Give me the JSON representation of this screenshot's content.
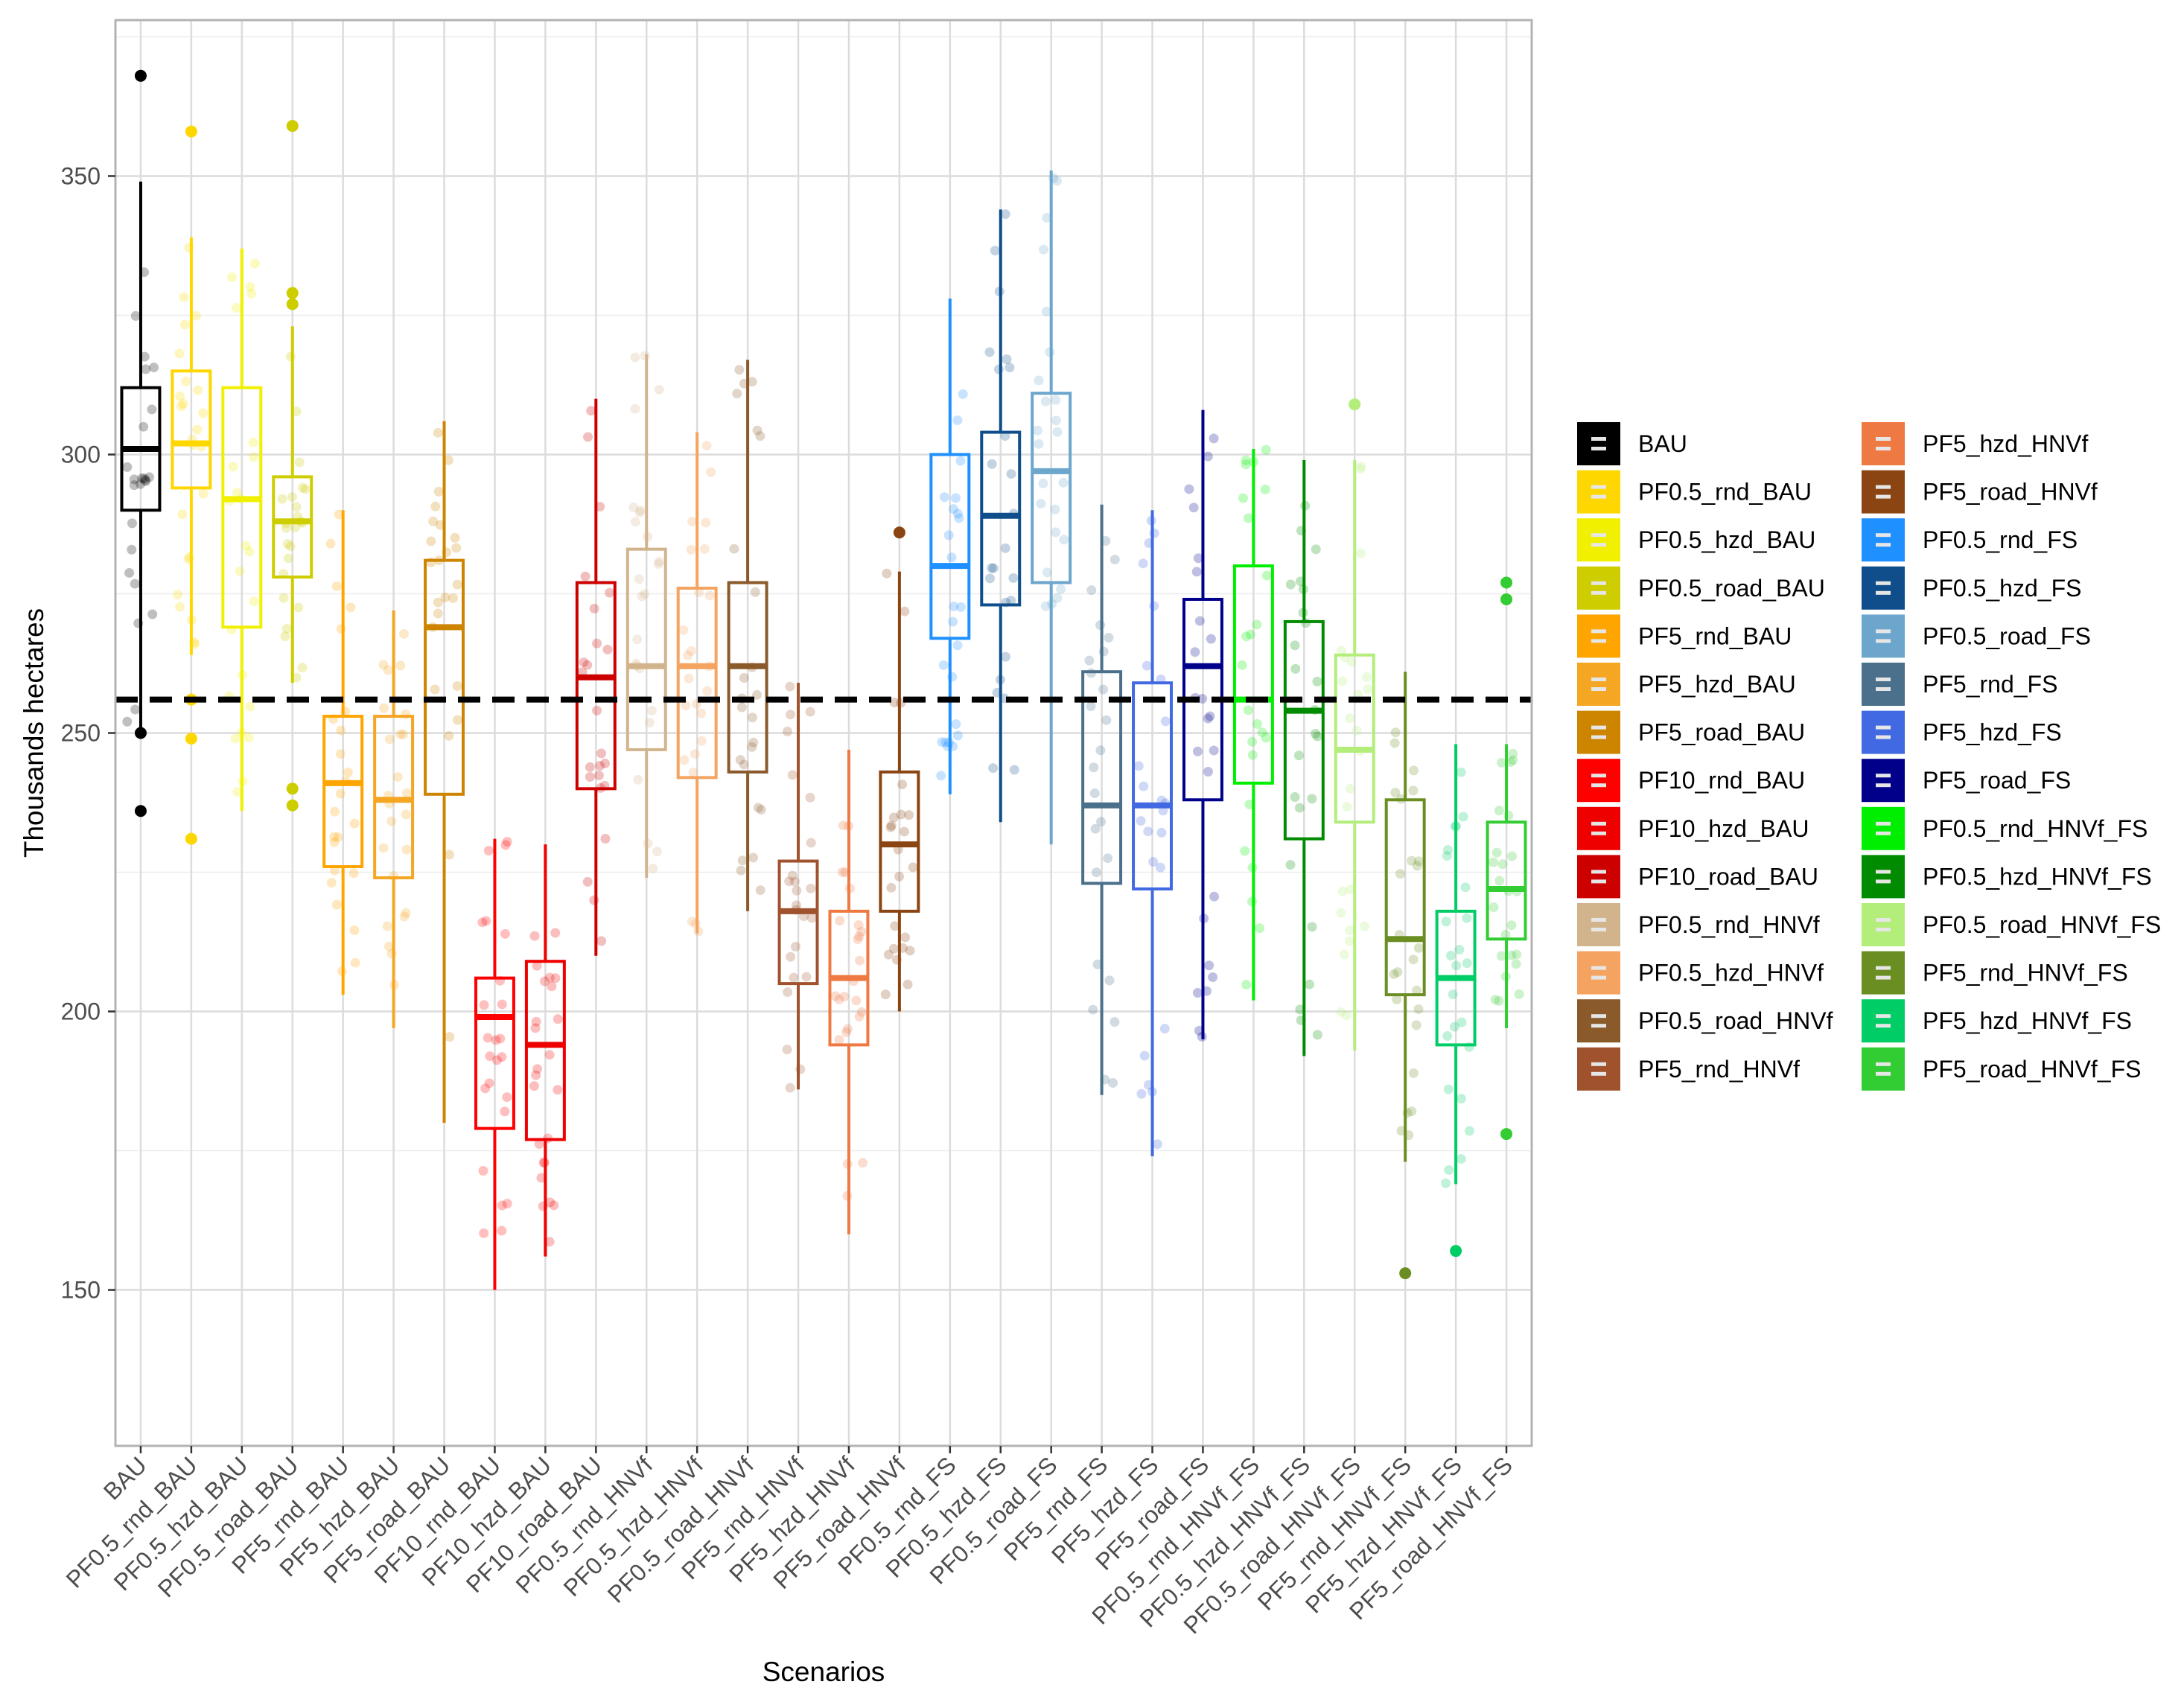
{
  "chart_data": {
    "type": "boxplot",
    "title": "",
    "xlabel": "Scenarios",
    "ylabel": "Thousands hectares",
    "ylim": [
      122,
      378
    ],
    "yticks": [
      150,
      200,
      250,
      300,
      350
    ],
    "grid": true,
    "reference_line": {
      "y": 256,
      "style": "dashed",
      "color": "#000000"
    },
    "legend_position": "right",
    "categories": [
      "BAU",
      "PF0.5_rnd_BAU",
      "PF0.5_hzd_BAU",
      "PF0.5_road_BAU",
      "PF5_rnd_BAU",
      "PF5_hzd_BAU",
      "PF5_road_BAU",
      "PF10_rnd_BAU",
      "PF10_hzd_BAU",
      "PF10_road_BAU",
      "PF0.5_rnd_HNVf",
      "PF0.5_hzd_HNVf",
      "PF0.5_road_HNVf",
      "PF5_rnd_HNVf",
      "PF5_hzd_HNVf",
      "PF5_road_HNVf",
      "PF0.5_rnd_FS",
      "PF0.5_hzd_FS",
      "PF0.5_road_FS",
      "PF5_rnd_FS",
      "PF5_hzd_FS",
      "PF5_road_FS",
      "PF0.5_rnd_HNVf_FS",
      "PF0.5_hzd_HNVf_FS",
      "PF0.5_road_HNVf_FS",
      "PF5_rnd_HNVf_FS",
      "PF5_hzd_HNVf_FS",
      "PF5_road_HNVf_FS"
    ],
    "series": [
      {
        "name": "BAU",
        "color": "#000000",
        "q1": 290,
        "median": 301,
        "q3": 312,
        "whisker_low": 251,
        "whisker_high": 349,
        "outliers": [
          368,
          250,
          236
        ]
      },
      {
        "name": "PF0.5_rnd_BAU",
        "color": "#FFD700",
        "q1": 294,
        "median": 302,
        "q3": 315,
        "whisker_low": 264,
        "whisker_high": 339,
        "outliers": [
          358,
          256,
          249,
          231
        ]
      },
      {
        "name": "PF0.5_hzd_BAU",
        "color": "#F0F000",
        "q1": 269,
        "median": 292,
        "q3": 312,
        "whisker_low": 236,
        "whisker_high": 337,
        "outliers": []
      },
      {
        "name": "PF0.5_road_BAU",
        "color": "#CDCD00",
        "q1": 278,
        "median": 288,
        "q3": 296,
        "whisker_low": 259,
        "whisker_high": 323,
        "outliers": [
          359,
          329,
          327,
          240,
          237
        ]
      },
      {
        "name": "PF5_rnd_BAU",
        "color": "#FFA500",
        "q1": 226,
        "median": 241,
        "q3": 253,
        "whisker_low": 203,
        "whisker_high": 290,
        "outliers": []
      },
      {
        "name": "PF5_hzd_BAU",
        "color": "#F5A623",
        "q1": 224,
        "median": 238,
        "q3": 253,
        "whisker_low": 197,
        "whisker_high": 272,
        "outliers": []
      },
      {
        "name": "PF5_road_BAU",
        "color": "#CD8500",
        "q1": 239,
        "median": 269,
        "q3": 281,
        "whisker_low": 180,
        "whisker_high": 306,
        "outliers": []
      },
      {
        "name": "PF10_rnd_BAU",
        "color": "#FF0000",
        "q1": 179,
        "median": 199,
        "q3": 206,
        "whisker_low": 150,
        "whisker_high": 231,
        "outliers": []
      },
      {
        "name": "PF10_hzd_BAU",
        "color": "#EE0000",
        "q1": 177,
        "median": 194,
        "q3": 209,
        "whisker_low": 156,
        "whisker_high": 230,
        "outliers": []
      },
      {
        "name": "PF10_road_BAU",
        "color": "#CD0000",
        "q1": 240,
        "median": 260,
        "q3": 277,
        "whisker_low": 210,
        "whisker_high": 310,
        "outliers": []
      },
      {
        "name": "PF0.5_rnd_HNVf",
        "color": "#D2B48C",
        "q1": 247,
        "median": 262,
        "q3": 283,
        "whisker_low": 224,
        "whisker_high": 318,
        "outliers": []
      },
      {
        "name": "PF0.5_hzd_HNVf",
        "color": "#F4A460",
        "q1": 242,
        "median": 262,
        "q3": 276,
        "whisker_low": 214,
        "whisker_high": 304,
        "outliers": []
      },
      {
        "name": "PF0.5_road_HNVf",
        "color": "#8B5A2B",
        "q1": 243,
        "median": 262,
        "q3": 277,
        "whisker_low": 218,
        "whisker_high": 317,
        "outliers": []
      },
      {
        "name": "PF5_rnd_HNVf",
        "color": "#A0522D",
        "q1": 205,
        "median": 218,
        "q3": 227,
        "whisker_low": 186,
        "whisker_high": 259,
        "outliers": []
      },
      {
        "name": "PF5_hzd_HNVf",
        "color": "#EE7942",
        "q1": 194,
        "median": 206,
        "q3": 218,
        "whisker_low": 160,
        "whisker_high": 247,
        "outliers": []
      },
      {
        "name": "PF5_road_HNVf",
        "color": "#8B4513",
        "q1": 218,
        "median": 230,
        "q3": 243,
        "whisker_low": 200,
        "whisker_high": 279,
        "outliers": [
          286
        ]
      },
      {
        "name": "PF0.5_rnd_FS",
        "color": "#1E90FF",
        "q1": 267,
        "median": 280,
        "q3": 300,
        "whisker_low": 239,
        "whisker_high": 328,
        "outliers": []
      },
      {
        "name": "PF0.5_hzd_FS",
        "color": "#104E8B",
        "q1": 273,
        "median": 289,
        "q3": 304,
        "whisker_low": 234,
        "whisker_high": 344,
        "outliers": []
      },
      {
        "name": "PF0.5_road_FS",
        "color": "#6CA6CD",
        "q1": 277,
        "median": 297,
        "q3": 311,
        "whisker_low": 230,
        "whisker_high": 351,
        "outliers": []
      },
      {
        "name": "PF5_rnd_FS",
        "color": "#4A708B",
        "q1": 223,
        "median": 237,
        "q3": 261,
        "whisker_low": 185,
        "whisker_high": 291,
        "outliers": []
      },
      {
        "name": "PF5_hzd_FS",
        "color": "#4169E1",
        "q1": 222,
        "median": 237,
        "q3": 259,
        "whisker_low": 174,
        "whisker_high": 290,
        "outliers": []
      },
      {
        "name": "PF5_road_FS",
        "color": "#00008B",
        "q1": 238,
        "median": 262,
        "q3": 274,
        "whisker_low": 195,
        "whisker_high": 308,
        "outliers": []
      },
      {
        "name": "PF0.5_rnd_HNVf_FS",
        "color": "#00EE00",
        "q1": 241,
        "median": 256,
        "q3": 280,
        "whisker_low": 202,
        "whisker_high": 301,
        "outliers": []
      },
      {
        "name": "PF0.5_hzd_HNVf_FS",
        "color": "#008B00",
        "q1": 231,
        "median": 254,
        "q3": 270,
        "whisker_low": 192,
        "whisker_high": 299,
        "outliers": []
      },
      {
        "name": "PF0.5_road_HNVf_FS",
        "color": "#B3EE7A",
        "q1": 234,
        "median": 247,
        "q3": 264,
        "whisker_low": 193,
        "whisker_high": 299,
        "outliers": [
          309
        ]
      },
      {
        "name": "PF5_rnd_HNVf_FS",
        "color": "#6B8E23",
        "q1": 203,
        "median": 213,
        "q3": 238,
        "whisker_low": 173,
        "whisker_high": 261,
        "outliers": [
          153
        ]
      },
      {
        "name": "PF5_hzd_HNVf_FS",
        "color": "#00CD66",
        "q1": 194,
        "median": 206,
        "q3": 218,
        "whisker_low": 169,
        "whisker_high": 248,
        "outliers": [
          157
        ]
      },
      {
        "name": "PF5_road_HNVf_FS",
        "color": "#32CD32",
        "q1": 213,
        "median": 222,
        "q3": 234,
        "whisker_low": 197,
        "whisker_high": 248,
        "outliers": [
          277,
          274,
          178
        ]
      }
    ]
  }
}
